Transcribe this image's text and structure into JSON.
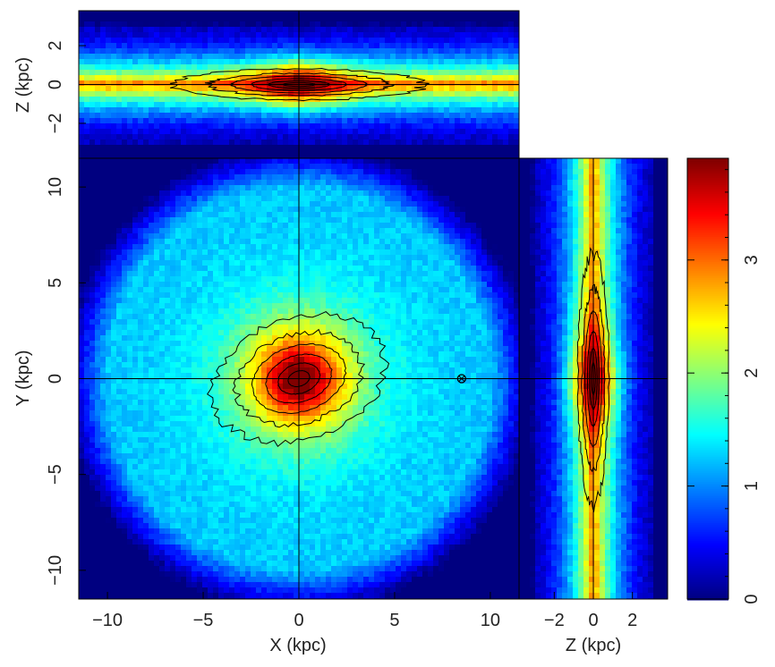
{
  "chart_data": [
    {
      "type": "heatmap",
      "panel": "face-on",
      "xlabel": "X (kpc)",
      "ylabel": "Y (kpc)",
      "xlim": [
        -11.5,
        11.5
      ],
      "ylim": [
        -11.5,
        11.5
      ],
      "xticks": [
        -10,
        -5,
        0,
        5,
        10
      ],
      "yticks": [
        -10,
        -5,
        0,
        5,
        10
      ],
      "center": [
        0,
        0
      ],
      "ellipse_axes": [
        3.2,
        2.2
      ],
      "rotation_deg": 18,
      "contour_levels": [
        1.9,
        2.15,
        2.5,
        2.9,
        3.3,
        3.55
      ],
      "marker": {
        "symbol": "sun",
        "x": 8.5,
        "y": 0
      }
    },
    {
      "type": "heatmap",
      "panel": "edge-on-xz",
      "xlabel": "",
      "ylabel": "Z (kpc)",
      "xlim": [
        -11.5,
        11.5
      ],
      "ylim": [
        -3.8,
        3.8
      ],
      "yticks": [
        -2,
        0,
        2
      ],
      "center": [
        0,
        0
      ],
      "ellipse_axes": [
        4.5,
        0.55
      ],
      "contour_levels": [
        1.9,
        2.15,
        2.5,
        2.9,
        3.3,
        3.55
      ]
    },
    {
      "type": "heatmap",
      "panel": "edge-on-zy",
      "xlabel": "Z (kpc)",
      "ylabel": "",
      "xlim": [
        -3.8,
        3.8
      ],
      "ylim": [
        -11.5,
        11.5
      ],
      "xticks": [
        -2,
        0,
        2
      ],
      "center": [
        0,
        0
      ],
      "ellipse_axes": [
        0.55,
        4.5
      ],
      "contour_levels": [
        1.9,
        2.15,
        2.5,
        2.9,
        3.3,
        3.55
      ]
    }
  ],
  "colorbar": {
    "range": [
      0,
      3.9
    ],
    "ticks": [
      0,
      1,
      2,
      3
    ],
    "colormap": "jet",
    "colors": [
      "#00008f",
      "#0000ff",
      "#00ffff",
      "#ffff00",
      "#ff0000",
      "#800000"
    ]
  }
}
